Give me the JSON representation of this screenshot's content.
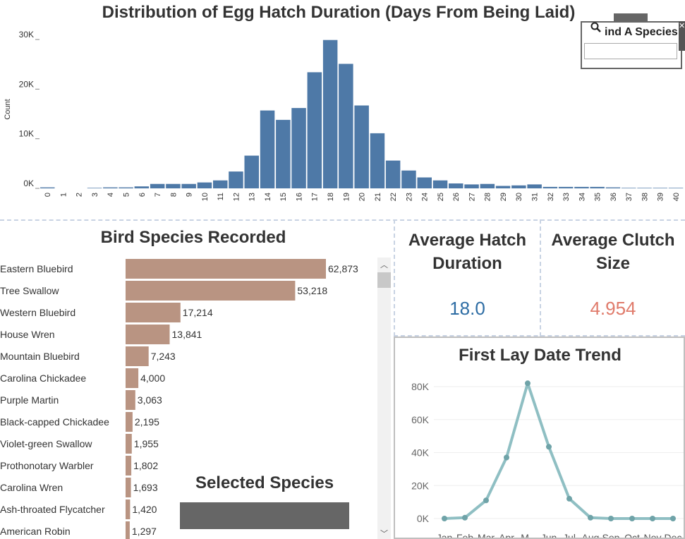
{
  "hist": {
    "title": "Distribution of Egg Hatch Duration (Days From Being Laid)",
    "ylabel": "Count",
    "color": "#4e79a7",
    "yticks": [
      "0K",
      "10K",
      "20K",
      "30K"
    ]
  },
  "find": {
    "label": "ind A Species",
    "value": ""
  },
  "species_panel": {
    "title": "Bird Species Recorded",
    "color": "#b99482"
  },
  "kpi": {
    "hatch_title_1": "Average Hatch",
    "hatch_title_2": "Duration",
    "hatch_value": "18.0",
    "hatch_color": "#2e6da4",
    "clutch_title_1": "Average Clutch",
    "clutch_title_2": "Size",
    "clutch_value": "4.954",
    "clutch_color": "#e07b6b"
  },
  "trend": {
    "title": "First Lay Date Trend",
    "color": "#8fbfc3",
    "yticks": [
      "0K",
      "20K",
      "40K",
      "60K",
      "80K"
    ]
  },
  "selected": {
    "title": "Selected Species"
  },
  "chart_data": [
    {
      "type": "bar",
      "title": "Distribution of Egg Hatch Duration (Days From Being Laid)",
      "xlabel": "",
      "ylabel": "Count",
      "ylim": [
        0,
        30000
      ],
      "categories": [
        "0",
        "1",
        "2",
        "3",
        "4",
        "5",
        "6",
        "7",
        "8",
        "9",
        "10",
        "11",
        "12",
        "13",
        "14",
        "15",
        "16",
        "17",
        "18",
        "19",
        "20",
        "21",
        "22",
        "23",
        "24",
        "25",
        "26",
        "27",
        "28",
        "29",
        "30",
        "31",
        "32",
        "33",
        "34",
        "35",
        "36",
        "37",
        "38",
        "39",
        "40"
      ],
      "values": [
        200,
        0,
        0,
        100,
        200,
        200,
        400,
        900,
        900,
        900,
        1200,
        1600,
        3400,
        6600,
        15700,
        13800,
        16200,
        23400,
        29900,
        25100,
        16700,
        11100,
        5600,
        3600,
        2200,
        1600,
        1000,
        800,
        900,
        500,
        600,
        800,
        300,
        300,
        300,
        300,
        200,
        100,
        100,
        100,
        100
      ]
    },
    {
      "type": "bar",
      "title": "Bird Species Recorded",
      "categories": [
        "Eastern Bluebird",
        "Tree Swallow",
        "Western Bluebird",
        "House Wren",
        "Mountain Bluebird",
        "Carolina Chickadee",
        "Purple Martin",
        "Black-capped Chickadee",
        "Violet-green Swallow",
        "Prothonotary Warbler",
        "Carolina Wren",
        "Ash-throated Flycatcher",
        "American Robin"
      ],
      "values": [
        62873,
        53218,
        17214,
        13841,
        7243,
        4000,
        3063,
        2195,
        1955,
        1802,
        1693,
        1420,
        1297
      ],
      "labels": [
        "62,873",
        "53,218",
        "17,214",
        "13,841",
        "7,243",
        "4,000",
        "3,063",
        "2,195",
        "1,955",
        "1,802",
        "1,693",
        "1,420",
        "1,297"
      ]
    },
    {
      "type": "line",
      "title": "First Lay Date Trend",
      "ylim": [
        0,
        80000
      ],
      "x": [
        "Jan",
        "Feb",
        "Mar",
        "Apr",
        "M..",
        "Jun",
        "Jul",
        "Aug",
        "Sep",
        "Oct",
        "Nov",
        "Dec"
      ],
      "values": [
        0,
        500,
        11000,
        37000,
        82000,
        43500,
        12000,
        500,
        0,
        0,
        0,
        0
      ]
    }
  ]
}
